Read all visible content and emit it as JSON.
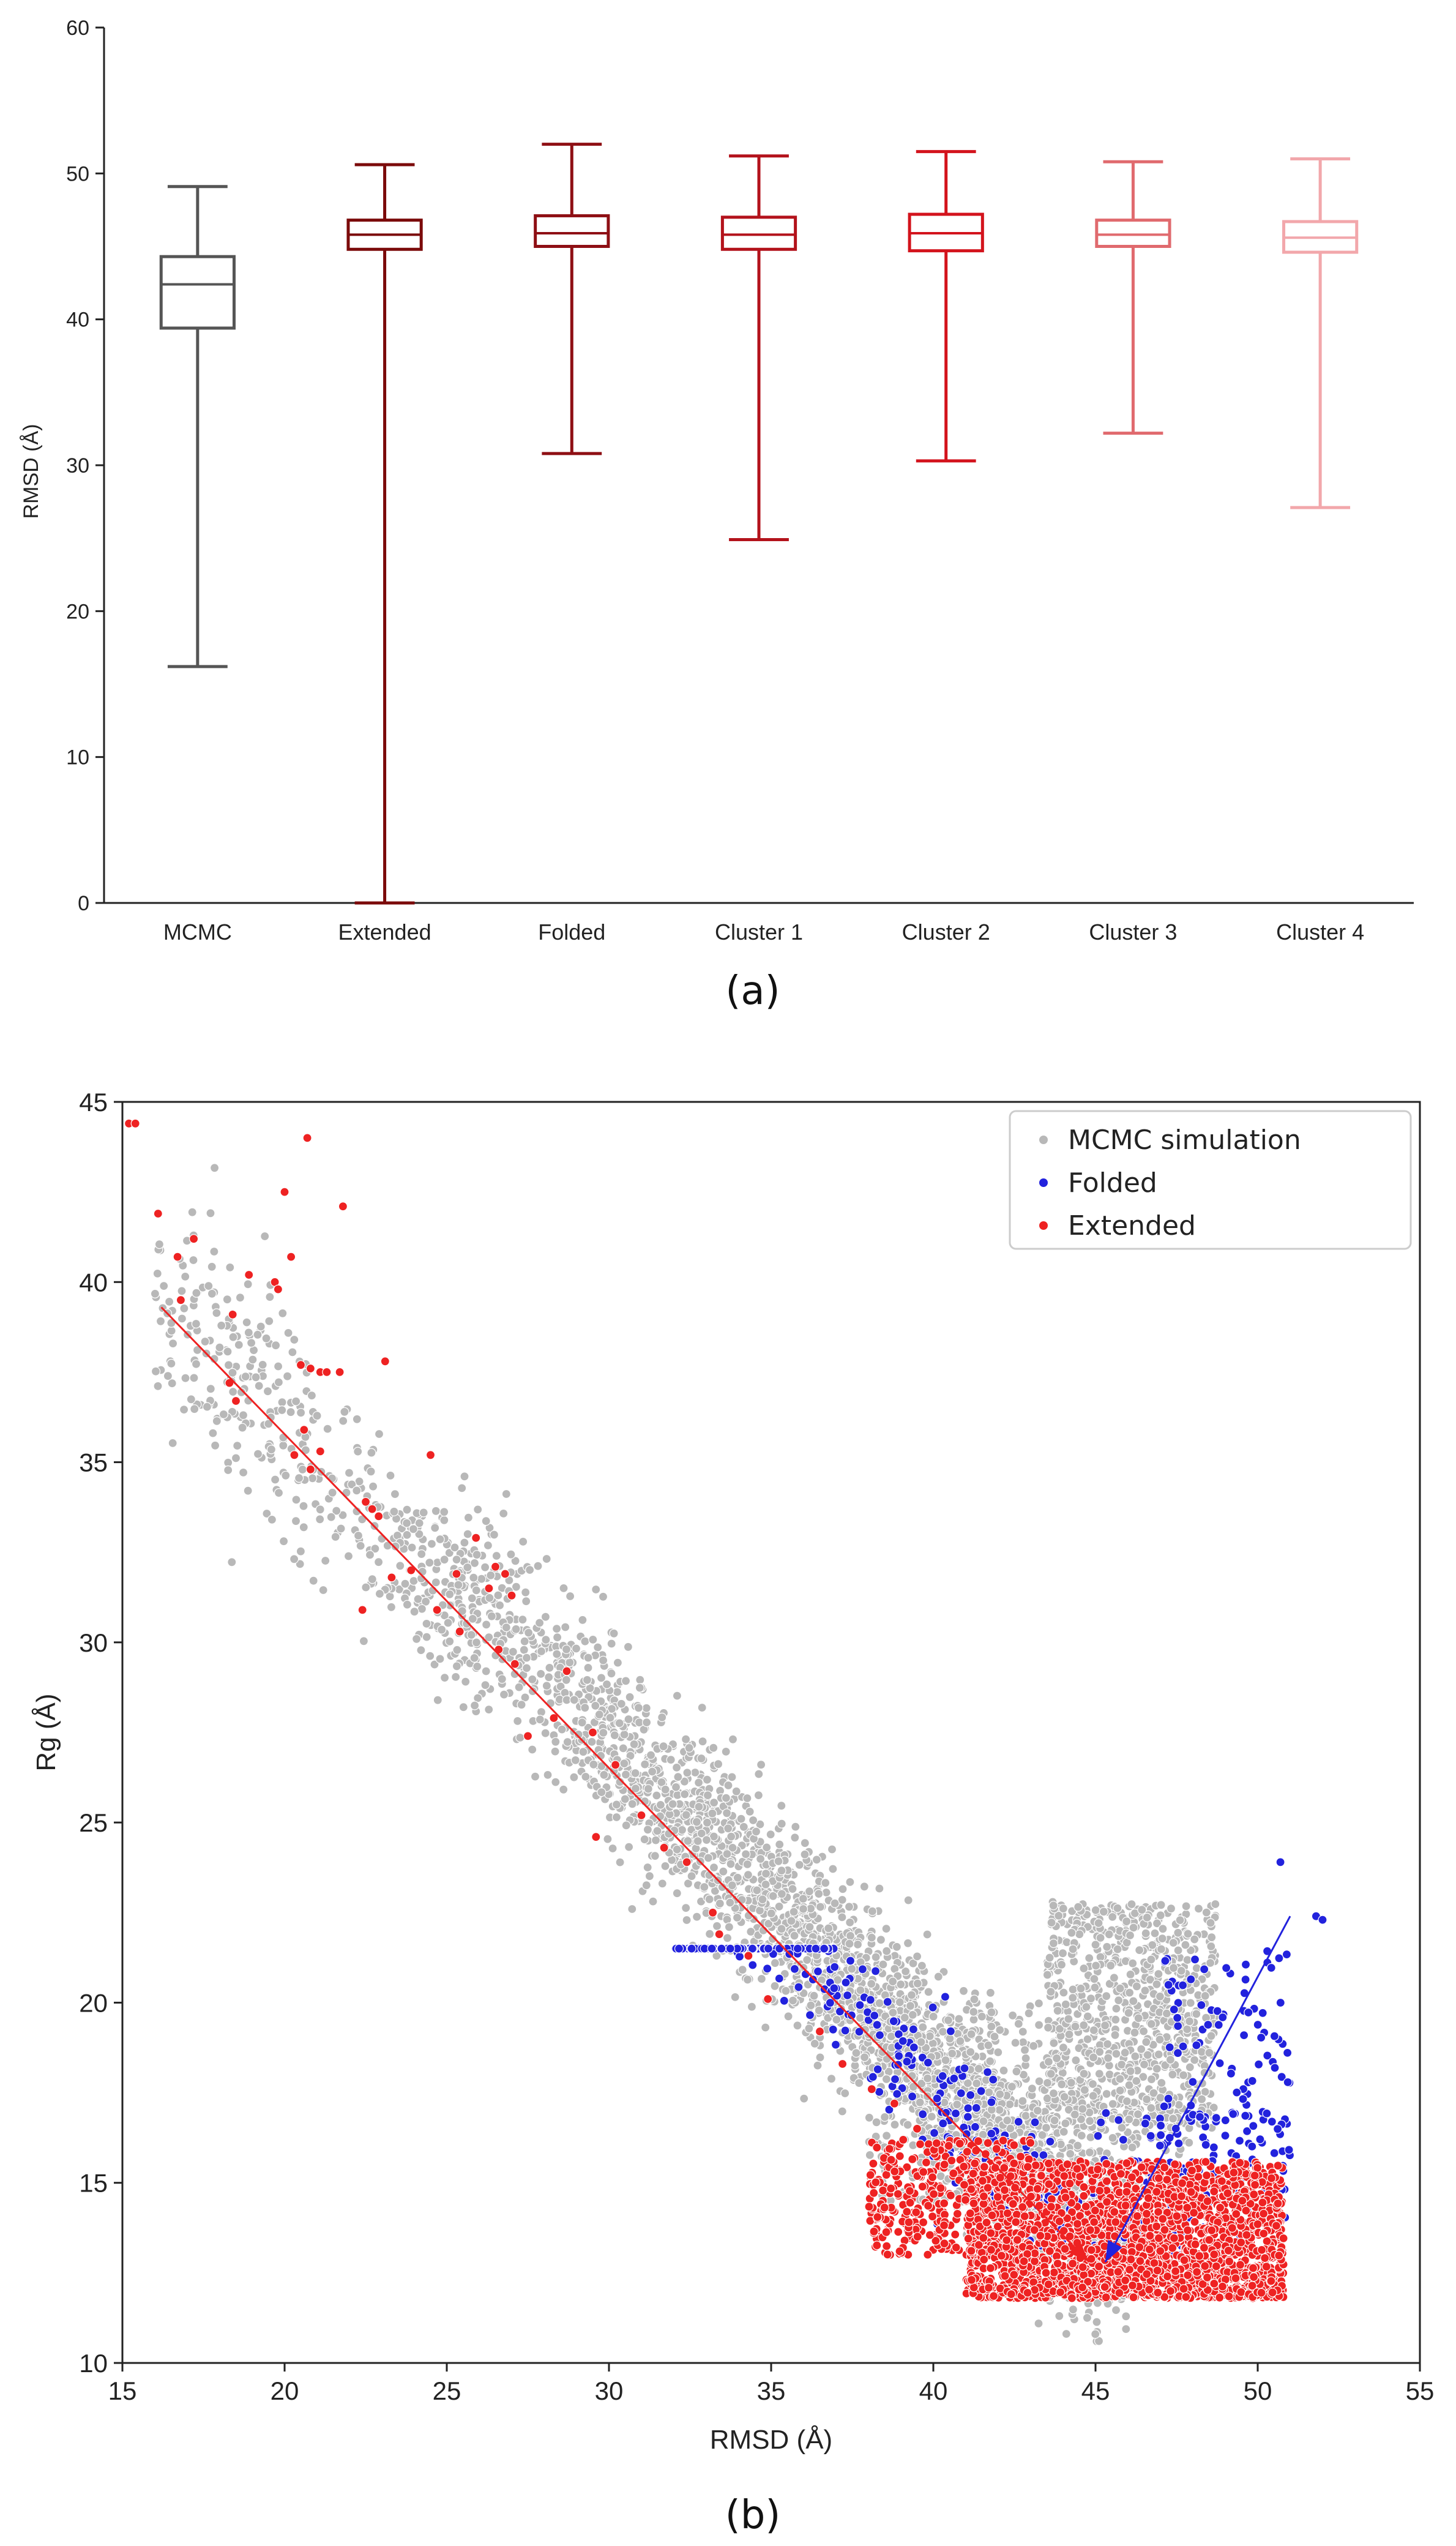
{
  "chart_data": [
    {
      "type": "box",
      "panel_label": "(a)",
      "title": "",
      "xlabel": "",
      "ylabel": "RMSD (Å)",
      "ylim": [
        0,
        60
      ],
      "yticks": [
        0,
        10,
        20,
        30,
        40,
        50,
        60
      ],
      "grid": false,
      "boxes": [
        {
          "name": "MCMC",
          "color": "#555555",
          "whisker_low": 16.2,
          "q1": 39.4,
          "median": 42.4,
          "q3": 44.3,
          "whisker_high": 49.1
        },
        {
          "name": "Extended",
          "color": "#7b0a0a",
          "whisker_low": 0.0,
          "q1": 44.8,
          "median": 45.8,
          "q3": 46.8,
          "whisker_high": 50.6
        },
        {
          "name": "Folded",
          "color": "#8e0f14",
          "whisker_low": 30.8,
          "q1": 45.0,
          "median": 45.9,
          "q3": 47.1,
          "whisker_high": 52.0
        },
        {
          "name": "Cluster 1",
          "color": "#b3121b",
          "whisker_low": 24.9,
          "q1": 44.8,
          "median": 45.8,
          "q3": 47.0,
          "whisker_high": 51.2
        },
        {
          "name": "Cluster 2",
          "color": "#d3131c",
          "whisker_low": 30.3,
          "q1": 44.7,
          "median": 45.9,
          "q3": 47.2,
          "whisker_high": 51.5
        },
        {
          "name": "Cluster 3",
          "color": "#e06a6e",
          "whisker_low": 32.2,
          "q1": 45.0,
          "median": 45.8,
          "q3": 46.8,
          "whisker_high": 50.8
        },
        {
          "name": "Cluster 4",
          "color": "#f2a7ab",
          "whisker_low": 27.1,
          "q1": 44.6,
          "median": 45.6,
          "q3": 46.7,
          "whisker_high": 51.0
        }
      ]
    },
    {
      "type": "scatter",
      "panel_label": "(b)",
      "title": "",
      "xlabel": "RMSD (Å)",
      "ylabel": "Rg (Å)",
      "xlim": [
        15,
        55
      ],
      "ylim": [
        10,
        45
      ],
      "xticks": [
        15,
        20,
        25,
        30,
        35,
        40,
        45,
        50,
        55
      ],
      "yticks": [
        10,
        15,
        20,
        25,
        30,
        35,
        40,
        45
      ],
      "grid": false,
      "legend_position": "top-right",
      "legend": [
        {
          "name": "MCMC simulation",
          "color": "#b8b8b8"
        },
        {
          "name": "Folded",
          "color": "#2222dd"
        },
        {
          "name": "Extended",
          "color": "#ee2222"
        }
      ],
      "series": [
        {
          "name": "MCMC simulation",
          "color": "#b8b8b8",
          "count": 4500,
          "description": "dense diagonal band from about (16, 40) down to (45, 12), plus upper cloud near x 44-48, y 16-23",
          "distribution": {
            "band_x": [
              16,
              51
            ],
            "trend_start": [
              16,
              39.5
            ],
            "trend_end": [
              44.8,
              12.8
            ],
            "band_spread_rg": 1.6
          }
        },
        {
          "name": "Folded",
          "color": "#2222dd",
          "count": 600,
          "description": "scattered along band x 32-50, y 13-21, plus vertical stripe near x 47-51, y 13-24",
          "outliers": [
            [
              50.7,
              23.9
            ],
            [
              51.8,
              22.4
            ],
            [
              52.0,
              22.3
            ]
          ]
        },
        {
          "name": "Extended",
          "color": "#ee2222",
          "count": 2600,
          "description": "dense cluster x 41-51, y 11.8-16, plus sparse points along the band up to (15.3, 44.4)",
          "sparse_points": [
            [
              15.2,
              44.4
            ],
            [
              15.4,
              44.4
            ],
            [
              16.1,
              41.9
            ],
            [
              16.7,
              40.7
            ],
            [
              16.8,
              39.5
            ],
            [
              17.2,
              41.2
            ],
            [
              18.3,
              37.2
            ],
            [
              18.4,
              39.1
            ],
            [
              18.5,
              36.7
            ],
            [
              18.9,
              40.2
            ],
            [
              19.7,
              40.0
            ],
            [
              19.8,
              39.8
            ],
            [
              20.0,
              42.5
            ],
            [
              20.2,
              40.7
            ],
            [
              20.3,
              35.2
            ],
            [
              20.5,
              37.7
            ],
            [
              20.6,
              35.9
            ],
            [
              20.7,
              44.0
            ],
            [
              20.8,
              34.8
            ],
            [
              20.8,
              37.6
            ],
            [
              21.1,
              35.3
            ],
            [
              21.1,
              37.5
            ],
            [
              21.3,
              37.5
            ],
            [
              21.7,
              37.5
            ],
            [
              21.8,
              42.1
            ],
            [
              22.4,
              30.9
            ],
            [
              22.5,
              33.9
            ],
            [
              22.7,
              33.7
            ],
            [
              22.9,
              33.5
            ],
            [
              23.1,
              37.8
            ],
            [
              23.3,
              31.8
            ],
            [
              23.9,
              32.0
            ],
            [
              24.5,
              35.2
            ],
            [
              24.7,
              30.9
            ],
            [
              25.3,
              31.9
            ],
            [
              25.4,
              30.3
            ],
            [
              25.9,
              32.9
            ],
            [
              26.3,
              31.5
            ],
            [
              26.5,
              32.1
            ],
            [
              26.8,
              31.9
            ],
            [
              27.0,
              31.3
            ],
            [
              26.6,
              29.8
            ],
            [
              27.1,
              29.4
            ],
            [
              27.5,
              27.4
            ],
            [
              28.3,
              27.9
            ],
            [
              28.7,
              29.2
            ],
            [
              29.5,
              27.5
            ],
            [
              29.6,
              24.6
            ],
            [
              30.2,
              26.6
            ],
            [
              31.0,
              25.2
            ],
            [
              31.7,
              24.3
            ],
            [
              32.4,
              23.9
            ],
            [
              33.2,
              22.5
            ],
            [
              33.4,
              21.9
            ],
            [
              34.3,
              21.3
            ],
            [
              34.9,
              20.1
            ],
            [
              36.5,
              19.2
            ],
            [
              37.2,
              18.3
            ],
            [
              38.1,
              17.6
            ],
            [
              38.8,
              17.2
            ],
            [
              39.5,
              16.5
            ],
            [
              40.1,
              16.1
            ]
          ]
        }
      ],
      "annotations": [
        {
          "type": "arrow",
          "color": "#ee2222",
          "from": [
            16.2,
            39.3
          ],
          "to": [
            44.8,
            12.8
          ]
        },
        {
          "type": "arrow",
          "color": "#2222dd",
          "from": [
            51.0,
            22.4
          ],
          "to": [
            45.3,
            12.8
          ]
        }
      ]
    }
  ]
}
